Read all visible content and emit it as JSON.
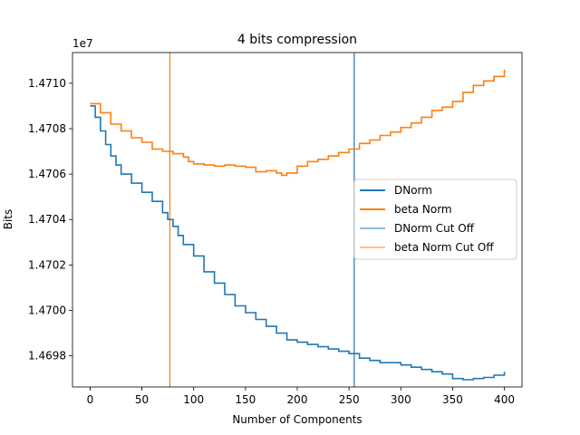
{
  "chart_data": {
    "type": "line",
    "title": "4 bits compression",
    "xlabel": "Number of Components",
    "ylabel": "Bits",
    "offset_label": "1e7",
    "xlim": [
      -17,
      417
    ],
    "ylim": [
      14696630,
      14711350
    ],
    "y_display_scale": 10000000,
    "xticks": [
      0,
      50,
      100,
      150,
      200,
      250,
      300,
      350,
      400
    ],
    "yticks": [
      14698000,
      14700000,
      14702000,
      14704000,
      14706000,
      14708000,
      14710000
    ],
    "ytick_labels": [
      "1.4698",
      "1.4700",
      "1.4702",
      "1.4704",
      "1.4706",
      "1.4708",
      "1.4710"
    ],
    "grid": false,
    "legend_position": "center-right",
    "series": [
      {
        "name": "DNorm",
        "color": "#1f77b4",
        "x": [
          0,
          5,
          10,
          15,
          20,
          25,
          30,
          40,
          50,
          60,
          70,
          75,
          80,
          85,
          90,
          100,
          110,
          120,
          130,
          140,
          150,
          160,
          170,
          180,
          190,
          200,
          210,
          220,
          230,
          240,
          250,
          260,
          270,
          280,
          290,
          300,
          310,
          320,
          330,
          340,
          350,
          360,
          370,
          380,
          390,
          400
        ],
        "y": [
          14709000,
          14708500,
          14707900,
          14707300,
          14706800,
          14706400,
          14706000,
          14705600,
          14705200,
          14704800,
          14704300,
          14704000,
          14703700,
          14703300,
          14702900,
          14702400,
          14701700,
          14701200,
          14700700,
          14700200,
          14699900,
          14699600,
          14699300,
          14699000,
          14698700,
          14698600,
          14698500,
          14698400,
          14698300,
          14698200,
          14698100,
          14697900,
          14697800,
          14697700,
          14697700,
          14697600,
          14697500,
          14697400,
          14697300,
          14697200,
          14697000,
          14696950,
          14697000,
          14697050,
          14697150,
          14697300
        ]
      },
      {
        "name": "beta Norm",
        "color": "#ff7f0e",
        "x": [
          0,
          10,
          20,
          30,
          40,
          50,
          60,
          70,
          80,
          90,
          95,
          100,
          110,
          120,
          130,
          140,
          150,
          160,
          170,
          180,
          185,
          190,
          200,
          210,
          220,
          230,
          240,
          250,
          260,
          270,
          280,
          290,
          300,
          310,
          320,
          330,
          340,
          350,
          360,
          370,
          380,
          390,
          400
        ],
        "y": [
          14709100,
          14708700,
          14708200,
          14707900,
          14707600,
          14707400,
          14707100,
          14707000,
          14706900,
          14706750,
          14706550,
          14706450,
          14706400,
          14706350,
          14706400,
          14706350,
          14706300,
          14706100,
          14706150,
          14706050,
          14705950,
          14706050,
          14706350,
          14706550,
          14706650,
          14706800,
          14706950,
          14707100,
          14707350,
          14707500,
          14707700,
          14707850,
          14708050,
          14708250,
          14708500,
          14708800,
          14708950,
          14709200,
          14709600,
          14709900,
          14710100,
          14710300,
          14710600
        ]
      }
    ],
    "cutoffs": [
      {
        "name": "DNorm Cut Off",
        "x": 255,
        "color": "#1f77b4"
      },
      {
        "name": "beta Norm Cut Off",
        "x": 77,
        "color": "#ff7f0e"
      }
    ],
    "legend": [
      {
        "label": "DNorm",
        "color": "#1f77b4",
        "width": 2
      },
      {
        "label": "beta Norm",
        "color": "#ff7f0e",
        "width": 2
      },
      {
        "label": "DNorm Cut Off",
        "color": "#1f77b4",
        "width": 1
      },
      {
        "label": "beta Norm Cut Off",
        "color": "#ff7f0e",
        "width": 1
      }
    ]
  }
}
